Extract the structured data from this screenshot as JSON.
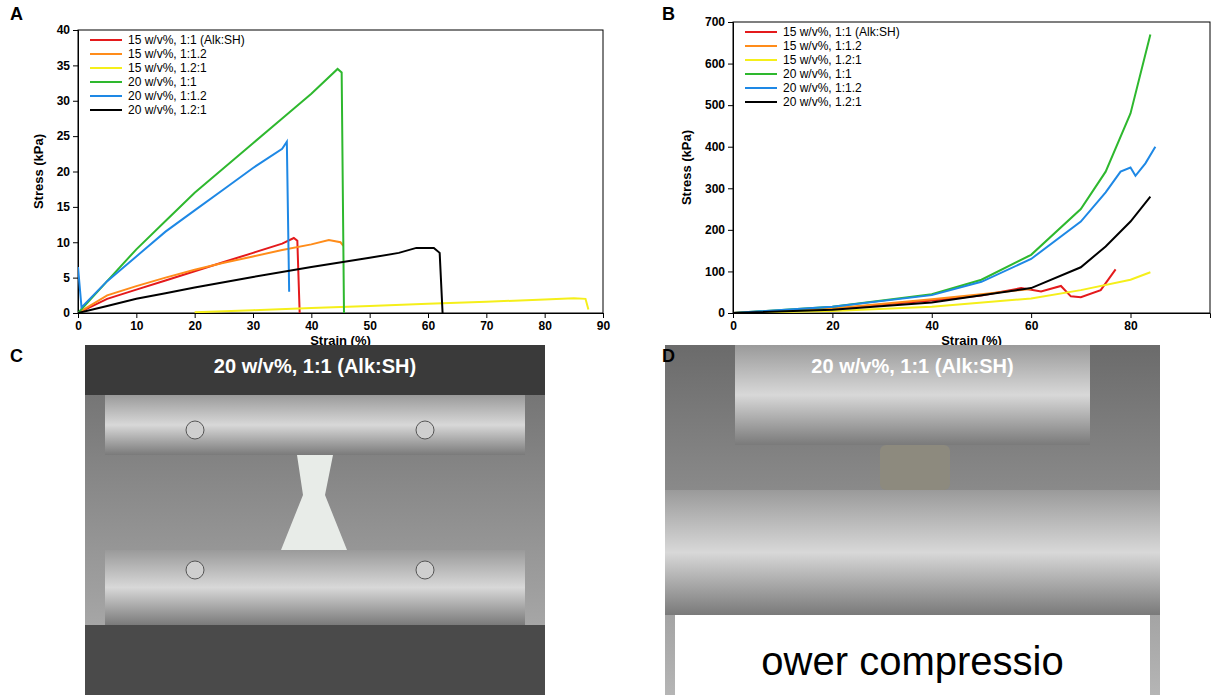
{
  "chart_data": [
    {
      "type": "line",
      "panel": "A",
      "x_label": "Strain (%)",
      "y_label": "Stress (kPa)",
      "xlim": [
        0,
        90
      ],
      "xticks": [
        0,
        10,
        20,
        30,
        40,
        50,
        60,
        70,
        80,
        90
      ],
      "ylim": [
        0,
        40
      ],
      "yticks": [
        0,
        5,
        10,
        15,
        20,
        25,
        30,
        35,
        40
      ],
      "legend": "upper left",
      "series": [
        {
          "name": "15 w/v%, 1:1 (Alk:SH)",
          "color": "#e41a1c",
          "x": [
            0,
            5,
            10,
            15,
            20,
            25,
            30,
            35,
            37,
            37.6,
            38
          ],
          "values": [
            0,
            2,
            3.3,
            4.6,
            5.9,
            7.2,
            8.5,
            9.8,
            10.6,
            10.2,
            0
          ]
        },
        {
          "name": "15 w/v%, 1:1.2",
          "color": "#ff8c1a",
          "x": [
            0,
            5,
            10,
            15,
            20,
            25,
            30,
            35,
            40,
            43,
            45,
            45.5
          ],
          "values": [
            0,
            2.5,
            3.8,
            5,
            6.1,
            7.1,
            8,
            8.9,
            9.7,
            10.3,
            10,
            9.5
          ]
        },
        {
          "name": "15 w/v%, 1.2:1",
          "color": "#f5ef1a",
          "x": [
            20,
            30,
            40,
            50,
            60,
            70,
            80,
            85,
            87,
            87.5
          ],
          "values": [
            0.1,
            0.4,
            0.7,
            1,
            1.3,
            1.6,
            1.9,
            2.1,
            2,
            0.5
          ]
        },
        {
          "name": "20 w/v%, 1:1",
          "color": "#2eb82e",
          "x": [
            0,
            5,
            10,
            15,
            20,
            25,
            30,
            35,
            40,
            44.5,
            45.2,
            45.6
          ],
          "values": [
            0,
            4.5,
            9,
            13,
            17,
            20.5,
            24,
            27.5,
            31,
            34.5,
            34,
            0
          ]
        },
        {
          "name": "20 w/v%, 1:1.2",
          "color": "#1e88e5",
          "x": [
            0,
            0.6,
            5,
            10,
            15,
            20,
            25,
            30,
            35,
            35.8,
            36.2
          ],
          "values": [
            6.5,
            0.8,
            4.5,
            8,
            11.5,
            14.5,
            17.5,
            20.5,
            23.2,
            24.2,
            3
          ]
        },
        {
          "name": "20 w/v%, 1.2:1",
          "color": "#000000",
          "x": [
            0,
            5,
            10,
            15,
            20,
            30,
            40,
            50,
            55,
            58,
            61,
            62,
            62.5
          ],
          "values": [
            0,
            1,
            2,
            2.8,
            3.6,
            5.1,
            6.5,
            7.8,
            8.5,
            9.2,
            9.2,
            8.5,
            0
          ]
        }
      ]
    },
    {
      "type": "line",
      "panel": "B",
      "x_label": "Strain (%)",
      "y_label": "Stress (kPa)",
      "xlim": [
        0,
        96
      ],
      "xticks": [
        0,
        20,
        40,
        60,
        80
      ],
      "ylim": [
        0,
        700
      ],
      "yticks": [
        0,
        100,
        200,
        300,
        400,
        500,
        600,
        700
      ],
      "legend": "upper left",
      "series": [
        {
          "name": "15 w/v%, 1:1 (Alk:SH)",
          "color": "#e41a1c",
          "x": [
            0,
            20,
            40,
            50,
            58,
            62,
            66,
            68,
            70,
            74,
            77
          ],
          "values": [
            0,
            10,
            30,
            42,
            60,
            52,
            65,
            40,
            38,
            55,
            105
          ]
        },
        {
          "name": "15 w/v%, 1:1.2",
          "color": "#ff8c1a",
          "x": [
            0,
            20,
            40,
            50,
            60
          ],
          "values": [
            0,
            11,
            33,
            45,
            58
          ]
        },
        {
          "name": "15 w/v%, 1.2:1",
          "color": "#f5ef1a",
          "x": [
            0,
            20,
            40,
            60,
            70,
            80,
            84
          ],
          "values": [
            0,
            5,
            15,
            35,
            55,
            80,
            98
          ]
        },
        {
          "name": "20 w/v%, 1:1",
          "color": "#2eb82e",
          "x": [
            0,
            20,
            40,
            50,
            60,
            70,
            75,
            80,
            84
          ],
          "values": [
            0,
            15,
            45,
            80,
            140,
            250,
            340,
            480,
            670
          ]
        },
        {
          "name": "20 w/v%, 1:1.2",
          "color": "#1e88e5",
          "x": [
            0,
            20,
            40,
            50,
            60,
            70,
            75,
            78,
            80,
            81,
            83,
            85
          ],
          "values": [
            0,
            15,
            43,
            75,
            130,
            220,
            290,
            340,
            350,
            330,
            360,
            400
          ]
        },
        {
          "name": "20 w/v%, 1.2:1",
          "color": "#000000",
          "x": [
            0,
            20,
            40,
            60,
            70,
            75,
            80,
            84
          ],
          "values": [
            0,
            8,
            25,
            60,
            110,
            160,
            220,
            280
          ]
        }
      ]
    }
  ],
  "photos": [
    {
      "panel": "C",
      "label": "20 w/v%, 1:1 (Alk:SH)"
    },
    {
      "panel": "D",
      "label": "20 w/v%, 1:1 (Alk:SH)",
      "caption": "ower compressio"
    }
  ]
}
